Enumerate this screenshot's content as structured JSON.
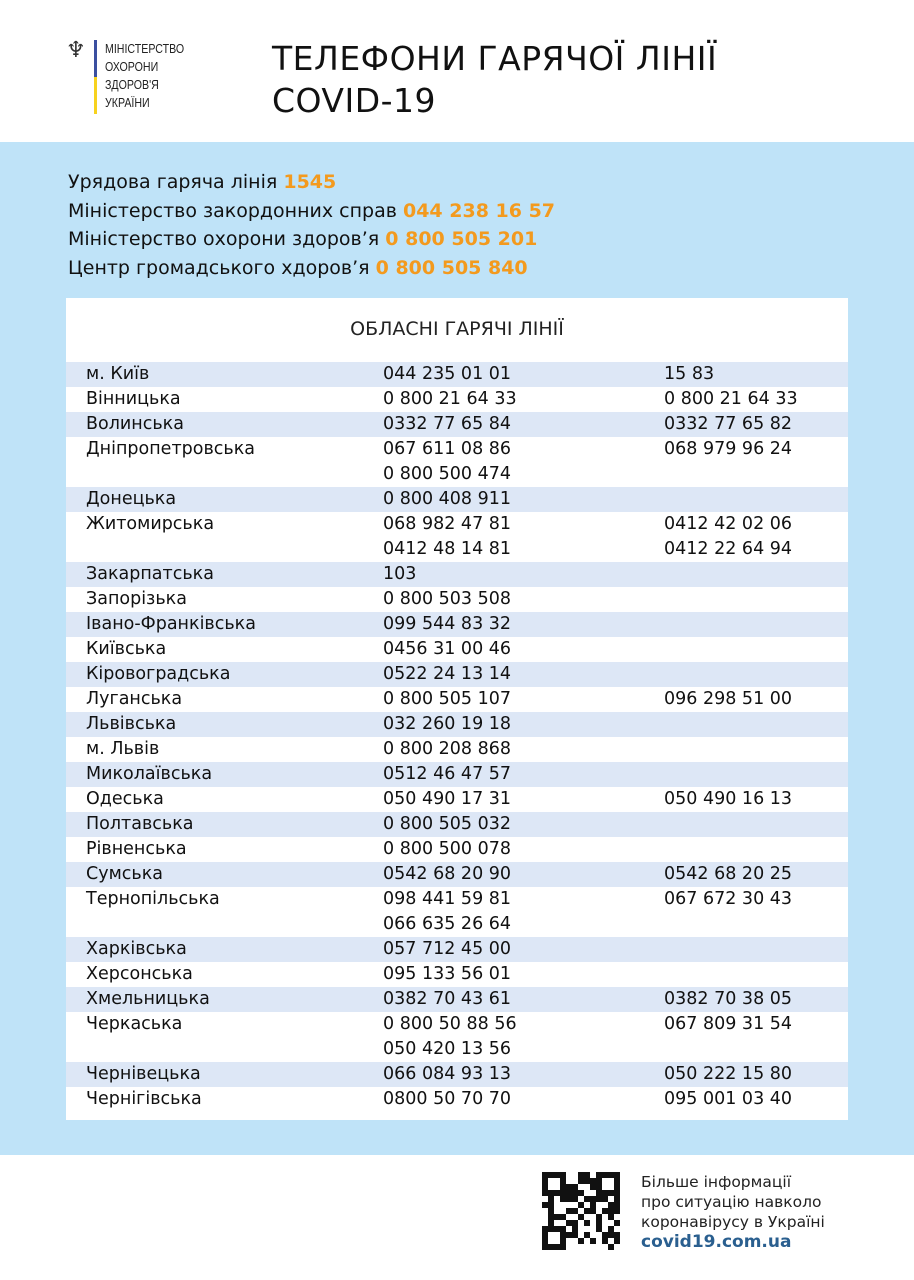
{
  "logo": {
    "lines": [
      "МІНІСТЕРСТВО",
      "ОХОРОНИ",
      "ЗДОРОВ'Я",
      "УКРАЇНИ"
    ]
  },
  "title": [
    "ТЕЛЕФОНИ ГАРЯЧОЇ ЛІНІЇ",
    "COVID-19"
  ],
  "hotlines": [
    {
      "label": "Урядова гаряча лінія",
      "number": "1545"
    },
    {
      "label": "Міністерство закордонних справ",
      "number": "044 238 16 57"
    },
    {
      "label": "Міністерство охорони здоров’я",
      "number": "0 800 505 201"
    },
    {
      "label": "Центр громадського хдоров’я",
      "number": "0 800 505 840"
    }
  ],
  "colors": {
    "accent": "#f39a1e",
    "background": "#bfe3f8",
    "stripe": "#dde7f6",
    "link": "#2a5f8f"
  },
  "table": {
    "title": "ОБЛАСНІ ГАРЯЧІ ЛІНІЇ",
    "rows": [
      {
        "region": "м. Київ",
        "phones1": [
          "044 235 01 01"
        ],
        "phones2": [
          "15 83"
        ]
      },
      {
        "region": "Вінницька",
        "phones1": [
          "0 800 21 64 33"
        ],
        "phones2": [
          "0 800 21 64 33"
        ]
      },
      {
        "region": "Волинська",
        "phones1": [
          "0332 77 65 84"
        ],
        "phones2": [
          "0332 77 65 82"
        ]
      },
      {
        "region": "Дніпропетровська",
        "phones1": [
          "067 611 08 86",
          "0 800 500 474"
        ],
        "phones2": [
          "068 979 96 24"
        ]
      },
      {
        "region": "Донецька",
        "phones1": [
          "0 800 408 911"
        ],
        "phones2": []
      },
      {
        "region": "Житомирська",
        "phones1": [
          "068 982 47 81",
          "0412 48 14 81"
        ],
        "phones2": [
          "0412 42 02 06",
          "0412 22 64 94"
        ]
      },
      {
        "region": "Закарпатська",
        "phones1": [
          "103"
        ],
        "phones2": []
      },
      {
        "region": "Запорізька",
        "phones1": [
          "0 800 503 508"
        ],
        "phones2": []
      },
      {
        "region": "Івано-Франківська",
        "phones1": [
          "099 544 83 32"
        ],
        "phones2": []
      },
      {
        "region": "Київська",
        "phones1": [
          "0456 31 00 46"
        ],
        "phones2": []
      },
      {
        "region": "Кіровоградська",
        "phones1": [
          "0522 24 13 14"
        ],
        "phones2": []
      },
      {
        "region": "Луганська",
        "phones1": [
          "0 800 505 107"
        ],
        "phones2": [
          "096 298 51 00"
        ]
      },
      {
        "region": "Львівська",
        "phones1": [
          "032 260 19 18"
        ],
        "phones2": []
      },
      {
        "region": "м. Львів",
        "phones1": [
          "0 800 208 868"
        ],
        "phones2": []
      },
      {
        "region": "Миколаївська",
        "phones1": [
          "0512 46 47 57"
        ],
        "phones2": []
      },
      {
        "region": "Одеська",
        "phones1": [
          "050 490 17 31"
        ],
        "phones2": [
          "050 490 16 13"
        ]
      },
      {
        "region": "Полтавська",
        "phones1": [
          "0 800 505 032"
        ],
        "phones2": []
      },
      {
        "region": "Рівненська",
        "phones1": [
          "0 800 500 078"
        ],
        "phones2": []
      },
      {
        "region": "Сумська",
        "phones1": [
          "0542 68 20 90"
        ],
        "phones2": [
          "0542 68 20 25"
        ]
      },
      {
        "region": "Тернопільська",
        "phones1": [
          "098 441 59 81",
          "066 635 26 64"
        ],
        "phones2": [
          "067 672 30 43"
        ]
      },
      {
        "region": "Харківська",
        "phones1": [
          "057 712 45 00"
        ],
        "phones2": []
      },
      {
        "region": "Херсонська",
        "phones1": [
          "095 133 56 01"
        ],
        "phones2": []
      },
      {
        "region": "Хмельницька",
        "phones1": [
          "0382 70 43 61"
        ],
        "phones2": [
          "0382 70 38 05"
        ]
      },
      {
        "region": "Черкаська",
        "phones1": [
          "0 800 50 88 56",
          "050 420 13 56"
        ],
        "phones2": [
          "067 809 31 54"
        ]
      },
      {
        "region": "Чернівецька",
        "phones1": [
          "066 084 93 13"
        ],
        "phones2": [
          "050 222 15 80"
        ]
      },
      {
        "region": "Чернігівська",
        "phones1": [
          "0800 50 70 70"
        ],
        "phones2": [
          "095 001 03 40"
        ]
      }
    ]
  },
  "footer": {
    "lines": [
      "Більше інформації",
      "про ситуацію навколо",
      "коронавірусу в Україні"
    ],
    "link": "covid19.com.ua"
  }
}
